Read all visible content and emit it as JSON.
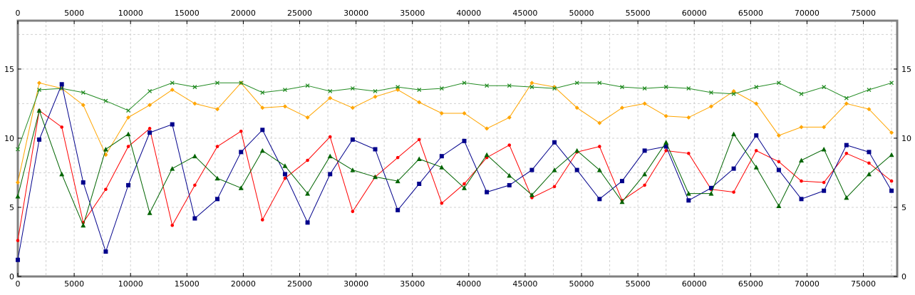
{
  "chart_data": {
    "type": "line",
    "title": "",
    "xlabel": "",
    "ylabel": "",
    "xlim": [
      0,
      78000
    ],
    "ylim": [
      0,
      18.5
    ],
    "x_ticks": [
      0,
      5000,
      10000,
      15000,
      20000,
      25000,
      30000,
      35000,
      40000,
      45000,
      50000,
      55000,
      60000,
      65000,
      70000,
      75000
    ],
    "x_tick_labels": [
      "0",
      "5000",
      "10000",
      "15000",
      "20000",
      "25000",
      "30000",
      "35000",
      "40000",
      "45000",
      "50000",
      "55000",
      "60000",
      "65000",
      "70000",
      "75000"
    ],
    "y_ticks": [
      0,
      5,
      10,
      15
    ],
    "y_tick_labels": [
      "0",
      "5",
      "10",
      "15"
    ],
    "grid": true,
    "x": [
      0,
      1900,
      3900,
      5800,
      7800,
      9800,
      11700,
      13700,
      15700,
      17700,
      19800,
      21700,
      23700,
      25700,
      27700,
      29700,
      31700,
      33700,
      35600,
      37600,
      39600,
      41600,
      43600,
      45600,
      47600,
      49600,
      51600,
      53600,
      55600,
      57500,
      59500,
      61500,
      63500,
      65500,
      67500,
      69500,
      71500,
      73500,
      75500,
      77500
    ],
    "series": [
      {
        "color": "#ffa500",
        "marker": "diamond",
        "values": [
          6.8,
          14.0,
          13.6,
          12.4,
          8.8,
          11.5,
          12.4,
          13.5,
          12.5,
          12.1,
          14.0,
          12.2,
          12.3,
          11.5,
          12.9,
          12.2,
          13.0,
          13.5,
          12.6,
          11.8,
          11.8,
          10.7,
          11.5,
          14.0,
          13.7,
          12.2,
          11.1,
          12.2,
          12.5,
          11.6,
          11.5,
          12.3,
          13.4,
          12.5,
          10.2,
          10.8,
          10.8,
          12.5,
          12.1,
          10.4
        ]
      },
      {
        "color": "#228b22",
        "marker": "x",
        "values": [
          9.2,
          13.5,
          13.6,
          13.3,
          12.7,
          12.0,
          13.4,
          14.0,
          13.7,
          14.0,
          14.0,
          13.3,
          13.5,
          13.8,
          13.4,
          13.6,
          13.4,
          13.7,
          13.5,
          13.6,
          14.0,
          13.8,
          13.8,
          13.7,
          13.6,
          14.0,
          14.0,
          13.7,
          13.6,
          13.7,
          13.6,
          13.3,
          13.2,
          13.7,
          14.0,
          13.2,
          13.7,
          12.9,
          13.5,
          14.0
        ]
      },
      {
        "color": "#ff0000",
        "marker": "circle",
        "values": [
          2.6,
          12.0,
          10.8,
          3.9,
          6.3,
          9.4,
          10.7,
          3.7,
          6.6,
          9.4,
          10.5,
          4.1,
          7.1,
          8.4,
          10.1,
          4.7,
          7.2,
          8.6,
          9.9,
          5.3,
          6.7,
          8.6,
          9.5,
          5.7,
          6.5,
          9.0,
          9.4,
          5.5,
          6.6,
          9.1,
          8.9,
          6.3,
          6.1,
          9.1,
          8.3,
          6.9,
          6.8,
          8.9,
          8.2,
          6.9
        ]
      },
      {
        "color": "#00008b",
        "marker": "square",
        "values": [
          1.2,
          9.9,
          13.9,
          6.8,
          1.8,
          6.6,
          10.4,
          11.0,
          4.2,
          5.6,
          9.0,
          10.6,
          7.4,
          3.9,
          7.4,
          9.9,
          9.2,
          4.8,
          6.7,
          8.7,
          9.8,
          6.1,
          6.6,
          7.7,
          9.7,
          7.7,
          5.6,
          6.9,
          9.1,
          9.4,
          5.5,
          6.4,
          7.8,
          10.2,
          7.7,
          5.6,
          6.2,
          9.5,
          9.0,
          6.2
        ]
      },
      {
        "color": "#006400",
        "marker": "triangle",
        "values": [
          5.8,
          12.0,
          7.4,
          3.7,
          9.2,
          10.3,
          4.6,
          7.8,
          8.7,
          7.1,
          6.4,
          9.1,
          8.0,
          6.0,
          8.7,
          7.7,
          7.2,
          6.9,
          8.5,
          7.9,
          6.4,
          8.8,
          7.3,
          5.9,
          7.7,
          9.1,
          7.7,
          5.4,
          7.4,
          9.7,
          6.0,
          6.0,
          10.3,
          7.9,
          5.1,
          8.4,
          9.2,
          5.7,
          7.4,
          8.8
        ]
      }
    ]
  }
}
